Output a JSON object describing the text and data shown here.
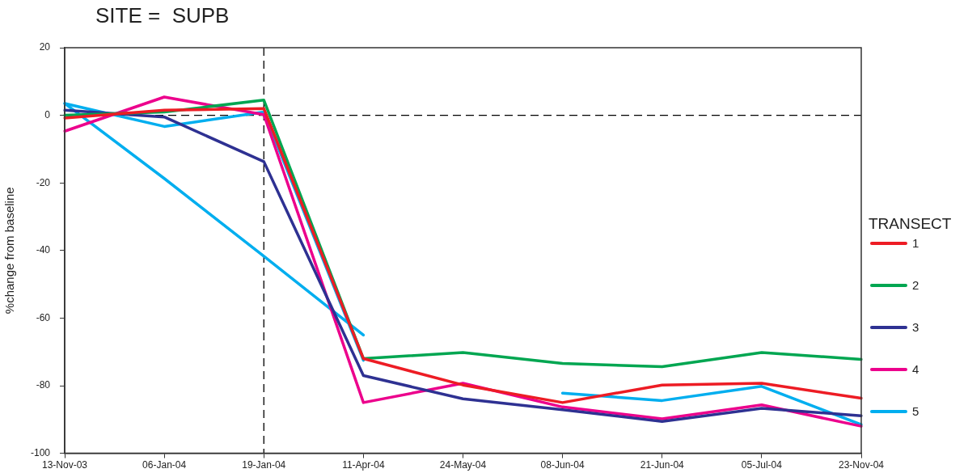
{
  "chart_data": {
    "type": "line",
    "title": "SITE =  SUPB",
    "ylabel": "%change from baseline",
    "legend_title": "TRANSECT",
    "legend": "right",
    "grid": false,
    "marker": "none",
    "line_style": "solid",
    "categories": [
      "13-Nov-03",
      "06-Jan-04",
      "19-Jan-04",
      "11-Apr-04",
      "24-May-04",
      "08-Jun-04",
      "21-Jun-04",
      "05-Jul-04",
      "23-Nov-04"
    ],
    "ylim": [
      -100,
      20
    ],
    "yticks": [
      -100,
      -80,
      -60,
      -40,
      -20,
      0,
      20
    ],
    "ref_lines": [
      {
        "axis": "y",
        "value": 0,
        "line_style": "dashed",
        "color": "#000000"
      },
      {
        "axis": "x",
        "value": "19-Jan-04",
        "line_style": "dashed",
        "color": "#000000"
      }
    ],
    "series": [
      {
        "name": "1",
        "color": "#ed1c24",
        "values": [
          -0.8,
          1.5,
          2,
          -72,
          -79.8,
          -85,
          -79.8,
          -79.3,
          -83.7
        ]
      },
      {
        "name": "2",
        "color": "#00a651",
        "values": [
          0,
          1,
          4.5,
          -72,
          -70.2,
          -73.4,
          -74.4,
          -70.2,
          -72.2
        ]
      },
      {
        "name": "3",
        "color": "#2e3192",
        "values": [
          1.5,
          -0.5,
          -13.7,
          -77,
          -83.9,
          -87.1,
          -90.6,
          -86.7,
          -88.9
        ]
      },
      {
        "name": "4",
        "color": "#ec008c",
        "values": [
          -4.7,
          5.4,
          0.2,
          -85,
          -79.3,
          -86.3,
          -89.8,
          -85.7,
          -92
        ]
      },
      {
        "name": "5",
        "color": "#00aeef",
        "values": [
          3.5,
          -3.3,
          1,
          -72.5,
          null,
          -82.2,
          -84.4,
          -80.2,
          -91.5
        ]
      },
      {
        "color": "#00aeef",
        "values": [
          3.5,
          -18.7,
          -41.7,
          -65,
          null,
          null,
          null,
          null,
          null
        ]
      }
    ]
  }
}
